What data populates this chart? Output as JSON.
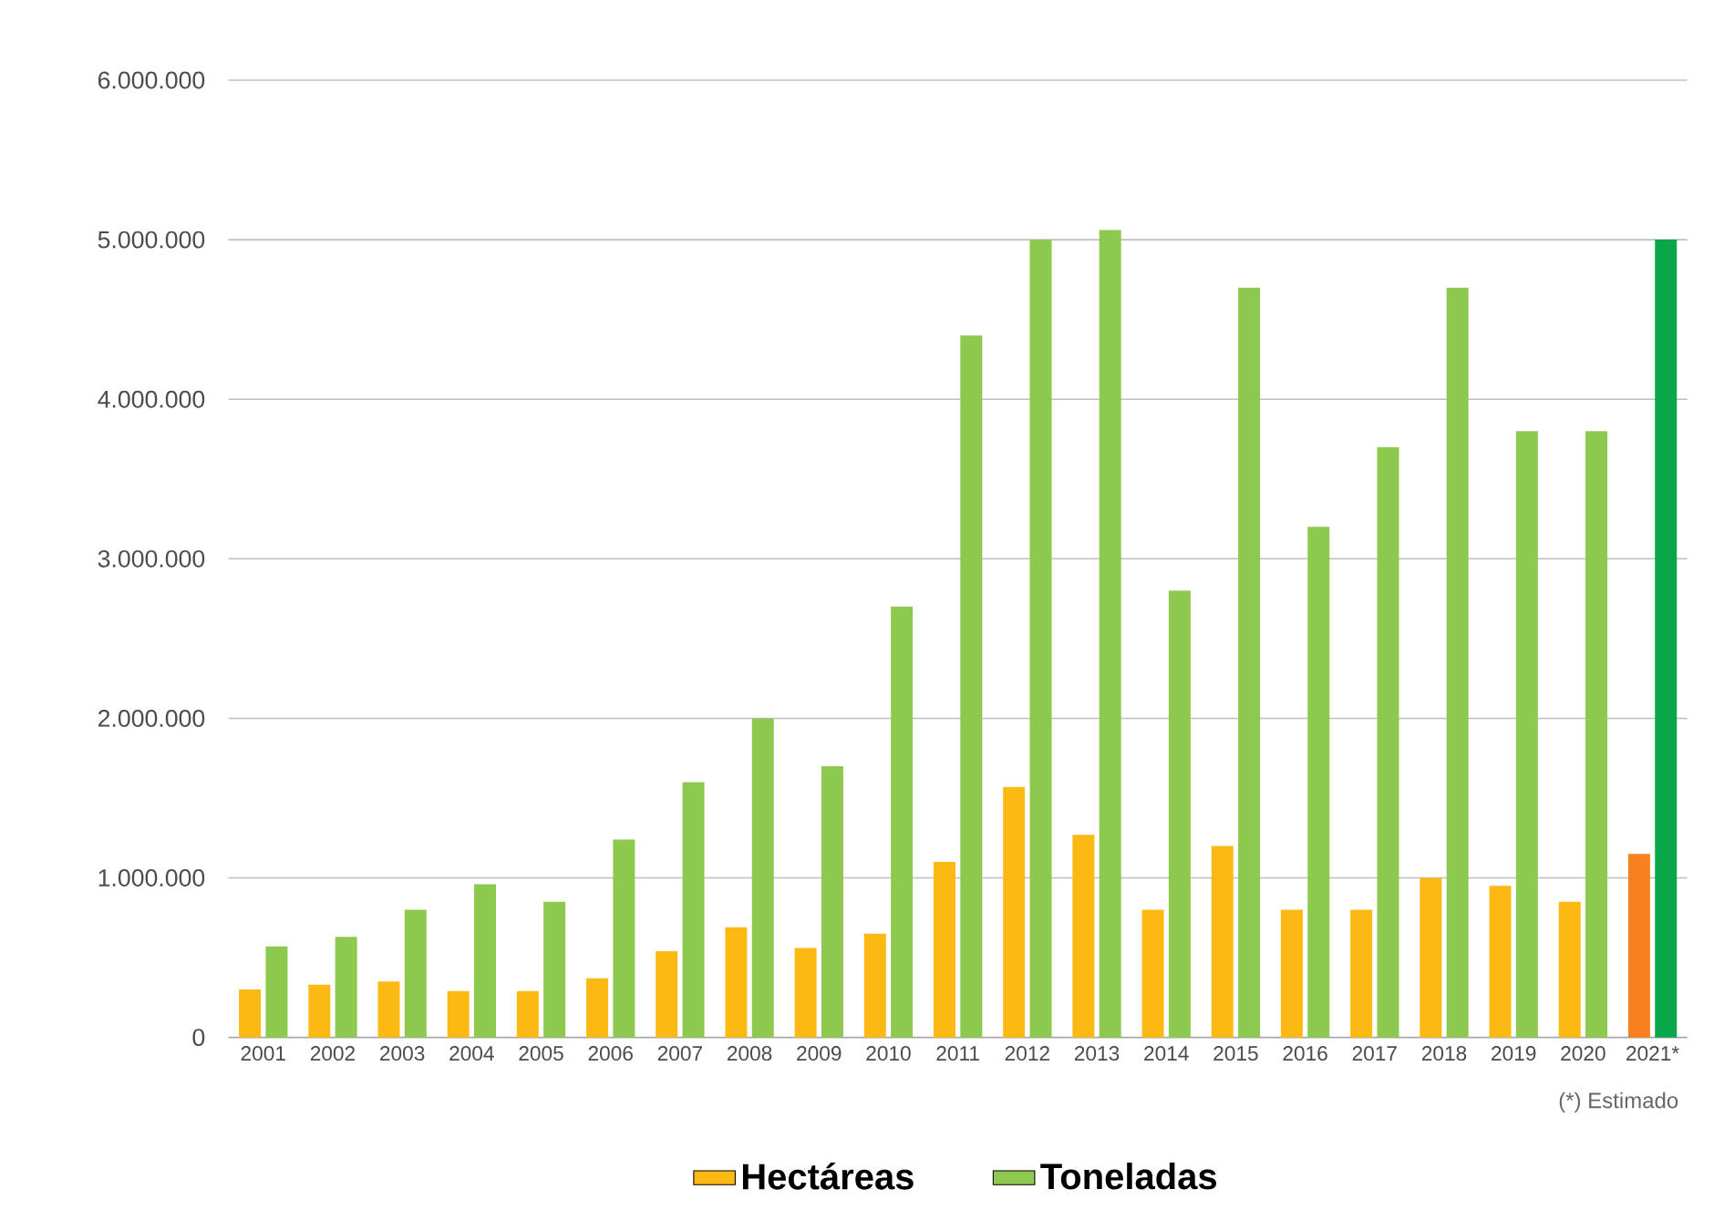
{
  "chart_data": {
    "type": "bar",
    "categories": [
      "2001",
      "2002",
      "2003",
      "2004",
      "2005",
      "2006",
      "2007",
      "2008",
      "2009",
      "2010",
      "2011",
      "2012",
      "2013",
      "2014",
      "2015",
      "2016",
      "2017",
      "2018",
      "2019",
      "2020",
      "2021*"
    ],
    "series": [
      {
        "name": "Hectáreas",
        "color": "#fdb913",
        "colors": [
          "#fdb913",
          "#fdb913",
          "#fdb913",
          "#fdb913",
          "#fdb913",
          "#fdb913",
          "#fdb913",
          "#fdb913",
          "#fdb913",
          "#fdb913",
          "#fdb913",
          "#fdb913",
          "#fdb913",
          "#fdb913",
          "#fdb913",
          "#fdb913",
          "#fdb913",
          "#fdb913",
          "#fdb913",
          "#fdb913",
          "#f7811e"
        ],
        "values": [
          300000,
          330000,
          350000,
          290000,
          290000,
          370000,
          540000,
          690000,
          560000,
          650000,
          1100000,
          1570000,
          1270000,
          800000,
          1200000,
          800000,
          800000,
          1000000,
          950000,
          850000,
          1150000
        ]
      },
      {
        "name": "Toneladas",
        "color": "#8dc94e",
        "colors": [
          "#8dc94e",
          "#8dc94e",
          "#8dc94e",
          "#8dc94e",
          "#8dc94e",
          "#8dc94e",
          "#8dc94e",
          "#8dc94e",
          "#8dc94e",
          "#8dc94e",
          "#8dc94e",
          "#8dc94e",
          "#8dc94e",
          "#8dc94e",
          "#8dc94e",
          "#8dc94e",
          "#8dc94e",
          "#8dc94e",
          "#8dc94e",
          "#8dc94e",
          "#0aa64a"
        ],
        "values": [
          570000,
          630000,
          800000,
          960000,
          850000,
          1240000,
          1600000,
          2000000,
          1700000,
          2700000,
          4400000,
          5000000,
          5060000,
          2800000,
          4700000,
          3200000,
          3700000,
          4700000,
          3800000,
          3800000,
          5000000
        ]
      }
    ],
    "ylim": [
      0,
      6000000
    ],
    "yticks": [
      0,
      {
        "value": 1000000,
        "label": "1.000.000"
      },
      {
        "value": 2000000,
        "label": "2.000.000"
      },
      {
        "value": 3000000,
        "label": "3.000.000"
      },
      {
        "value": 4000000,
        "label": "4.000.000"
      },
      {
        "value": 5000000,
        "label": "5.000.000"
      },
      {
        "value": 6000000,
        "label": "6.000.000"
      }
    ],
    "grid": "y",
    "legend": "bottom",
    "annotations": [
      "(*) Estimado"
    ]
  }
}
